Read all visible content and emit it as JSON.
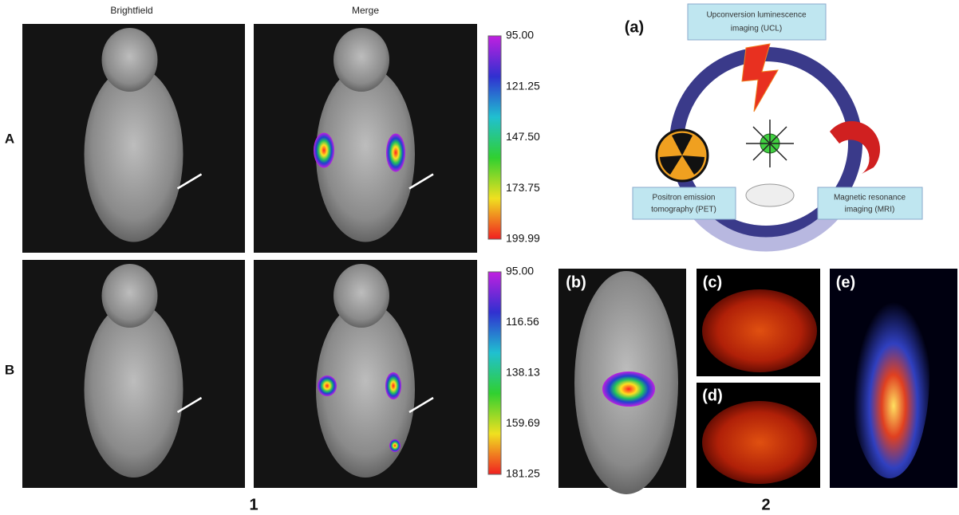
{
  "panel1": {
    "columns": [
      "Brightfield",
      "Merge"
    ],
    "rows": [
      "A",
      "B"
    ],
    "colorbars": [
      [
        "95.00",
        "121.25",
        "147.50",
        "173.75",
        "199.99"
      ],
      [
        "95.00",
        "116.56",
        "138.13",
        "159.69",
        "181.25"
      ]
    ],
    "label": "1"
  },
  "panel2": {
    "label": "2",
    "subpanels": [
      "(a)",
      "(b)",
      "(c)",
      "(d)",
      "(e)"
    ],
    "ucl": [
      "Upconversion luminescence",
      "imaging (UCL)"
    ],
    "pet": [
      "Positron emission",
      "tomography (PET)"
    ],
    "mri": [
      "Magnetic resonance",
      "imaging (MRI)"
    ]
  }
}
